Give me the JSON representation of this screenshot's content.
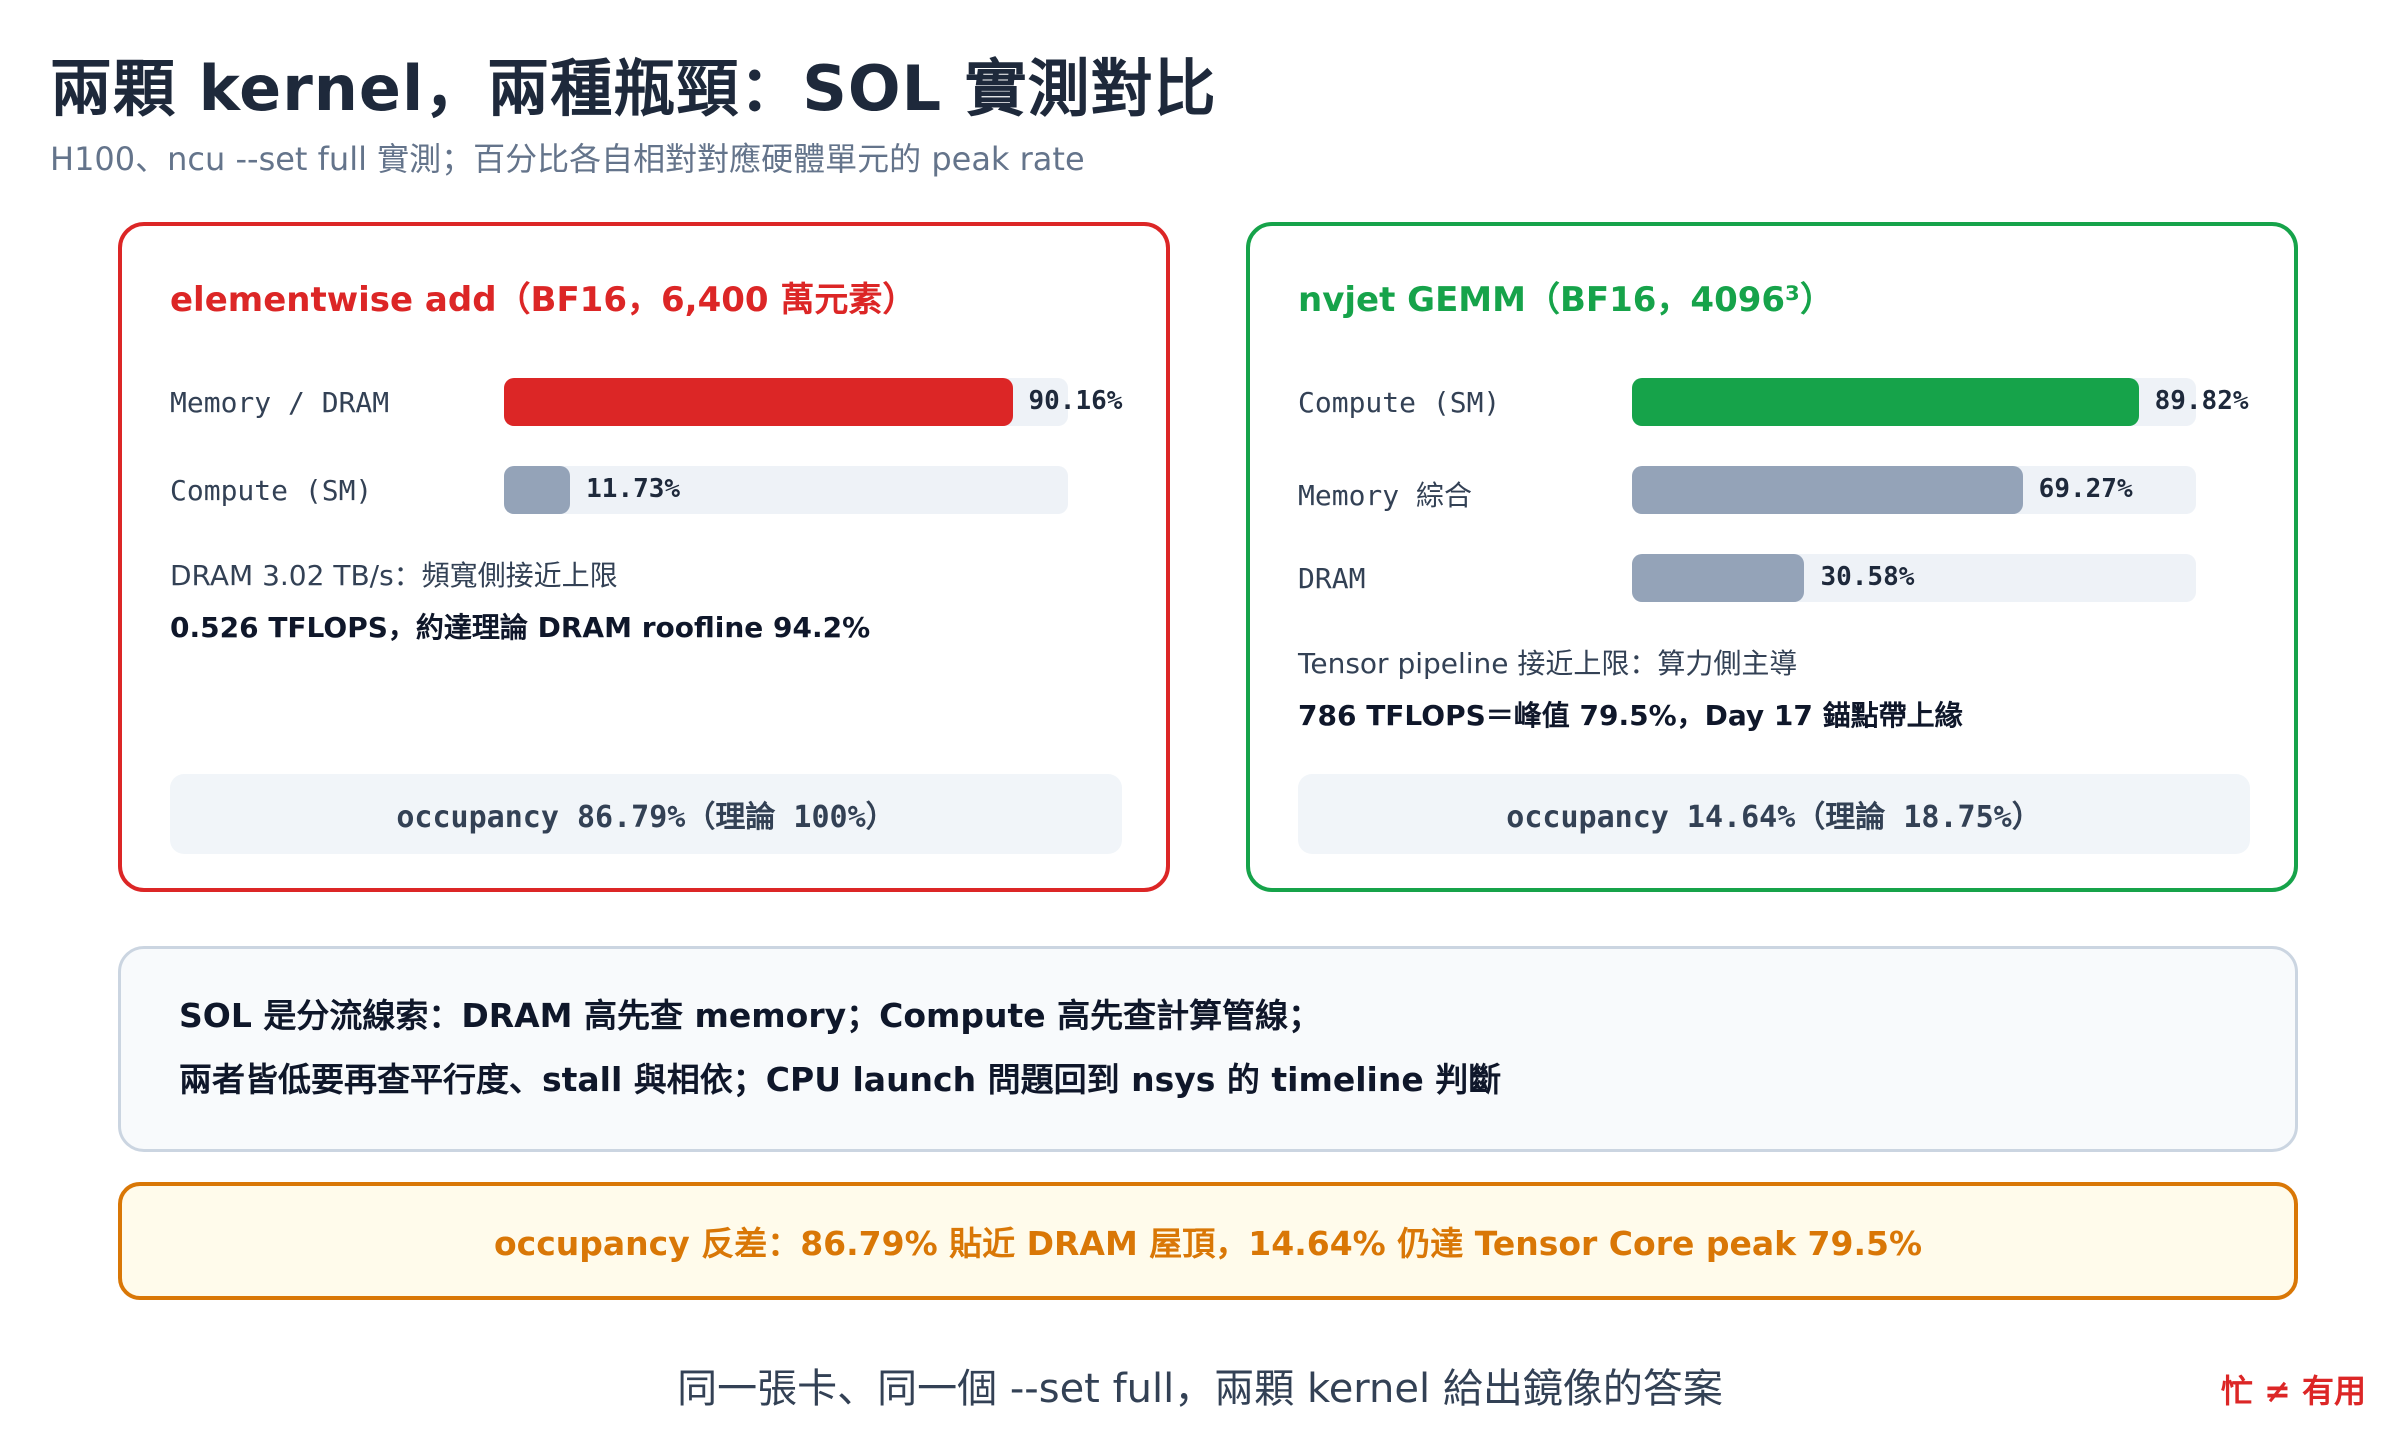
{
  "title": "兩顆 kernel，兩種瓶頸：SOL 實測對比",
  "subtitle": "H100、ncu --set full 實測；百分比各自相對對應硬體單元的 peak rate",
  "left_card": {
    "title": "elementwise add（BF16，6,400 萬元素）",
    "metrics": [
      {
        "label": "Memory / DRAM",
        "value": "90.16%",
        "percent": 90.16,
        "color": "#dc2626"
      },
      {
        "label": "Compute (SM)",
        "value": "11.73%",
        "percent": 11.73,
        "color": "#94a3b8"
      }
    ],
    "note1": "DRAM 3.02 TB/s：頻寬側接近上限",
    "note2": "0.526 TFLOPS，約達理論 DRAM roofline 94.2%",
    "occupancy": "occupancy 86.79%（理論 100%）"
  },
  "right_card": {
    "title": "nvjet GEMM（BF16，4096³）",
    "metrics": [
      {
        "label": "Compute (SM)",
        "value": "89.82%",
        "percent": 89.82,
        "color": "#16a34a"
      },
      {
        "label": "Memory 綜合",
        "value": "69.27%",
        "percent": 69.27,
        "color": "#94a3b8"
      },
      {
        "label": "DRAM",
        "value": "30.58%",
        "percent": 30.58,
        "color": "#94a3b8"
      }
    ],
    "note1": "Tensor pipeline 接近上限：算力側主導",
    "note2": "786 TFLOPS＝峰值 79.5%，Day 17 錨點帶上緣",
    "occupancy": "occupancy 14.64%（理論 18.75%）"
  },
  "summary": {
    "line1": "SOL 是分流線索：DRAM 高先查 memory；Compute 高先查計算管線；",
    "line2": "兩者皆低要再查平行度、stall 與相依；CPU launch 問題回到 nsys 的 timeline 判斷"
  },
  "callout": "occupancy 反差：86.79% 貼近 DRAM 屋頂，14.64% 仍達 Tensor Core peak 79.5%",
  "footer": "同一張卡、同一個 --set full，兩顆 kernel 給出鏡像的答案",
  "tag": "忙 ≠ 有用"
}
